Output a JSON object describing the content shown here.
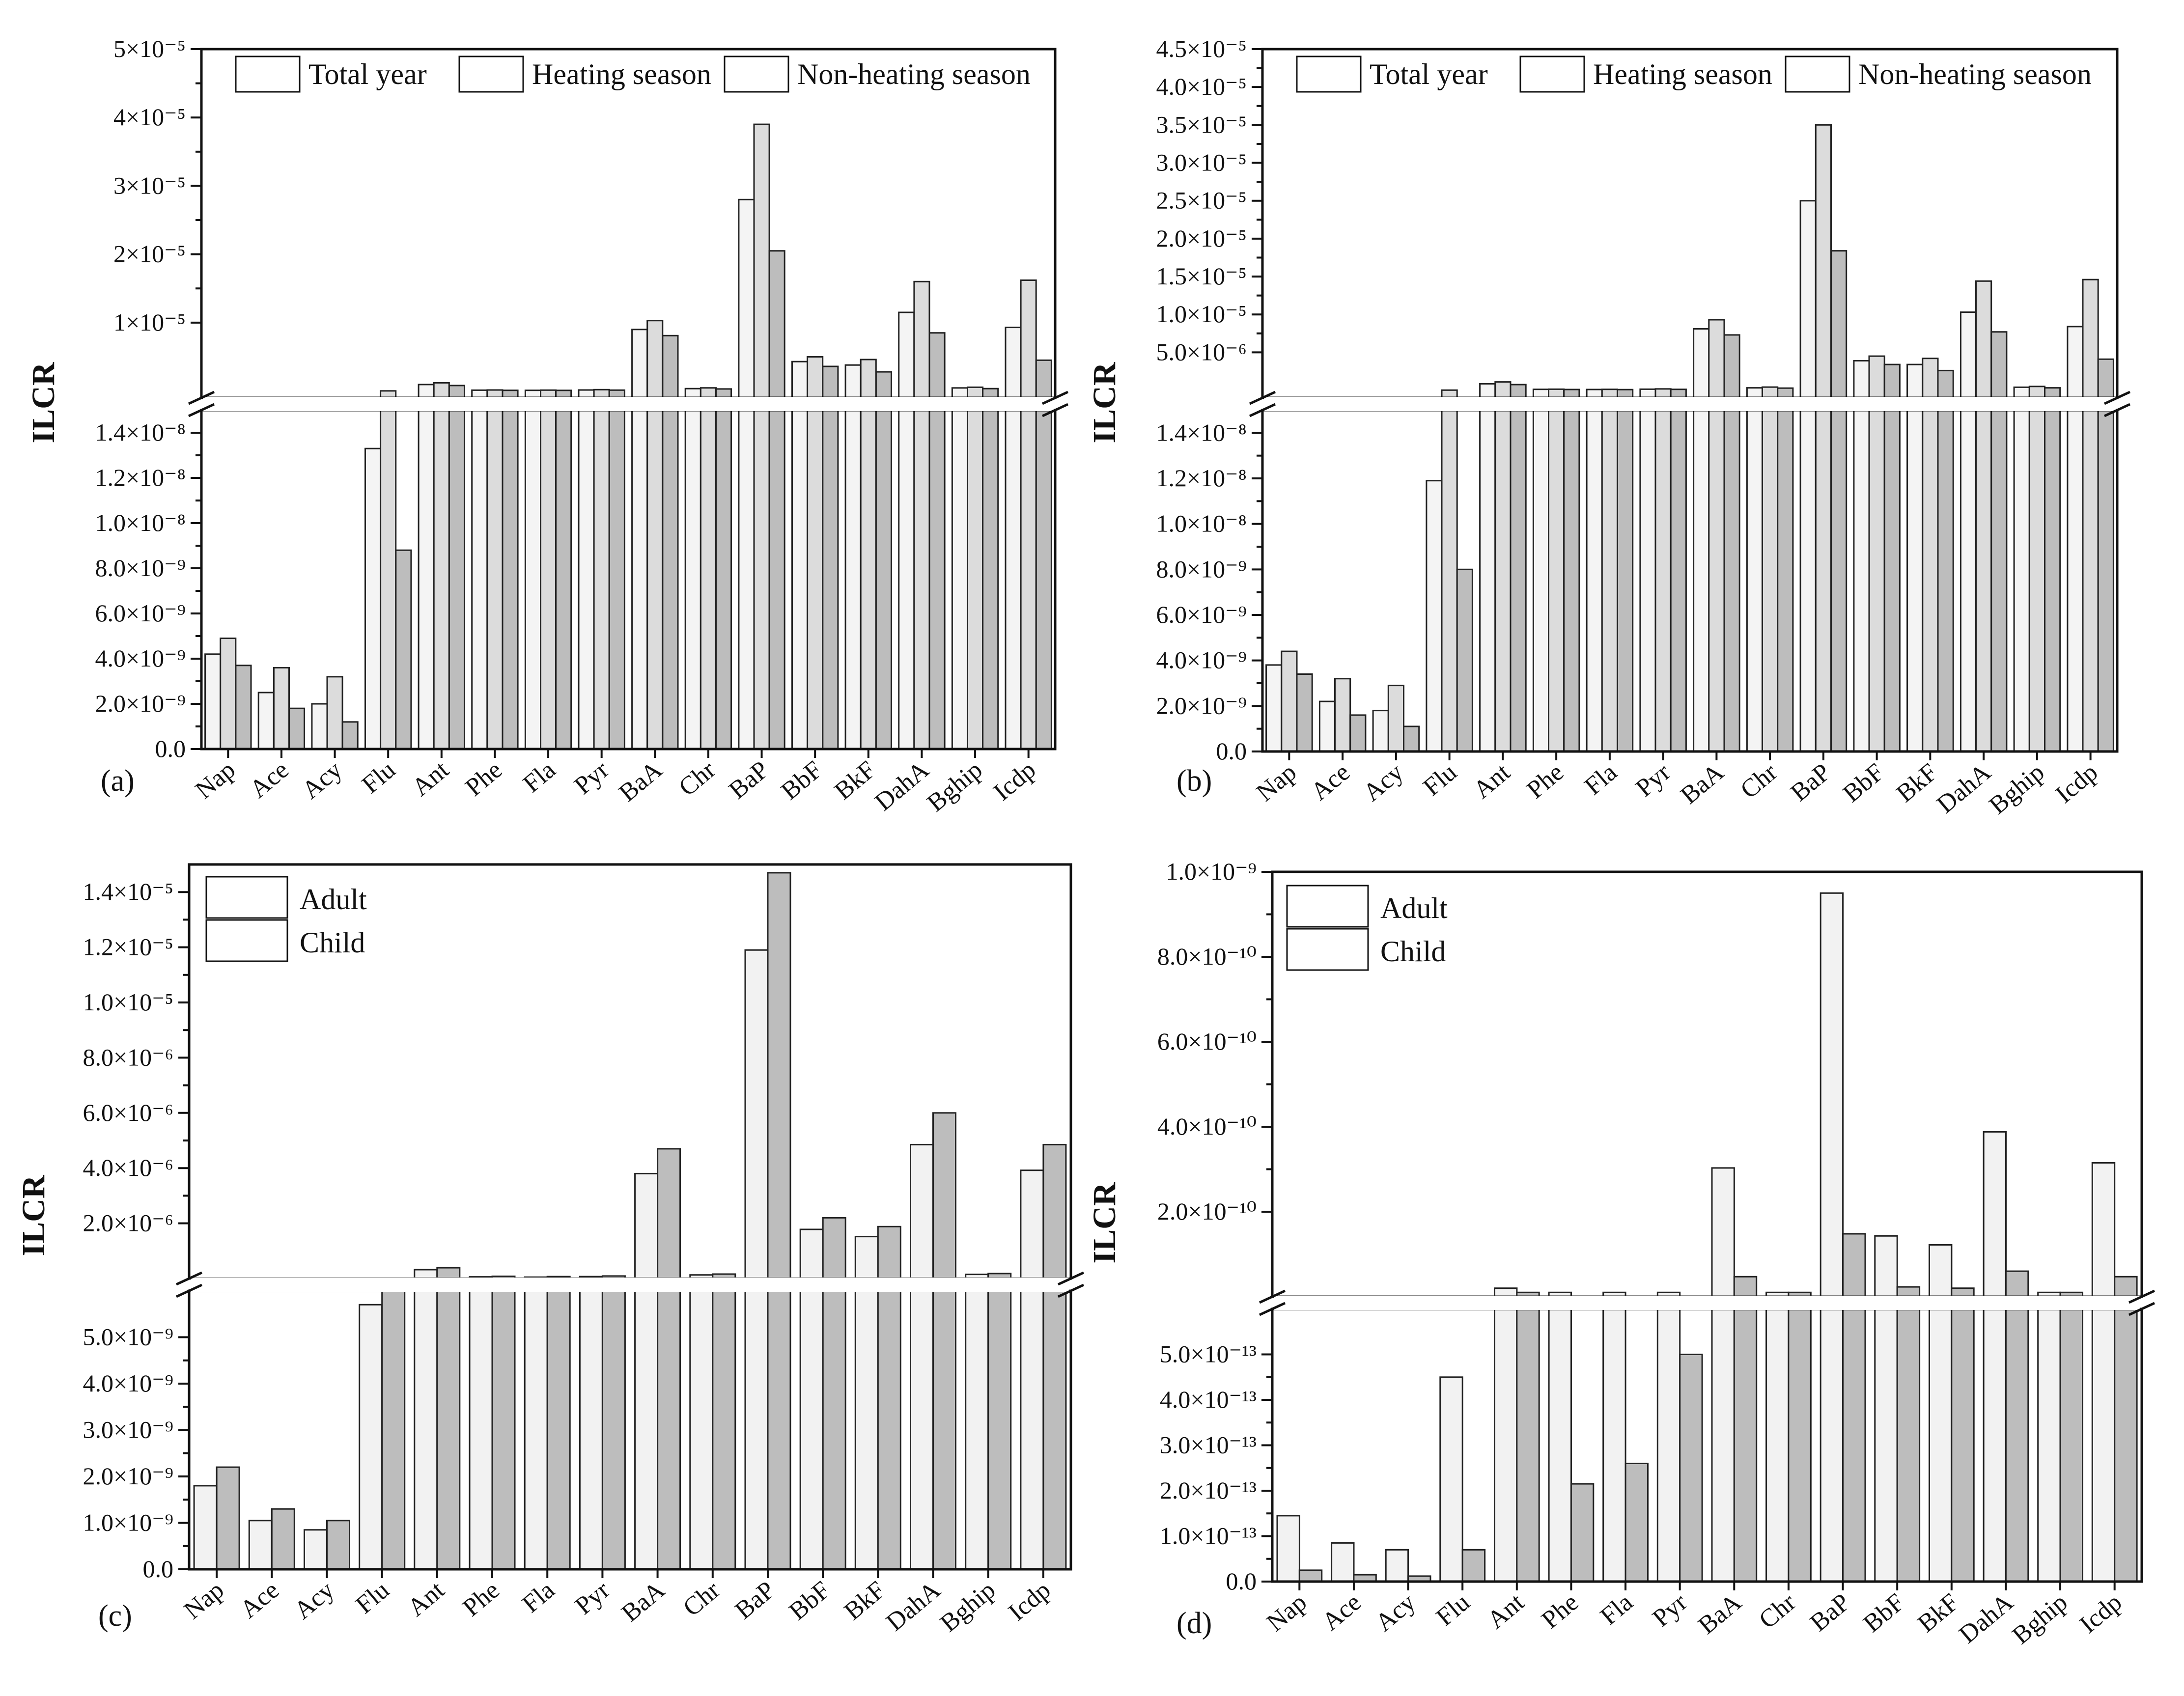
{
  "figure": {
    "colors": {
      "total_year": "#f4f4f4",
      "heating": "#dcdcdc",
      "non_heating": "#bdbdbd",
      "adult": "#f2f2f2",
      "child": "#bdbdbd"
    }
  },
  "chart_data": [
    {
      "id": "a",
      "type": "bar",
      "panel_label": "(a)",
      "ylabel": "ILCR",
      "categories": [
        "Nap",
        "Ace",
        "Acy",
        "Flu",
        "Ant",
        "Phe",
        "Fla",
        "Pyr",
        "BaA",
        "Chr",
        "BaP",
        "BbF",
        "BkF",
        "DahA",
        "Bghip",
        "Icdp"
      ],
      "legend": [
        "Total year",
        "Heating season",
        "Non-heating season"
      ],
      "broken_axis": true,
      "lower_axis": {
        "ylim": [
          0,
          1.5e-08
        ],
        "ticks": [
          0,
          2e-09,
          4e-09,
          6e-09,
          8e-09,
          1e-08,
          1.2e-08,
          1.4e-08
        ],
        "tick_labels": [
          "0.0",
          "2.0×10⁻⁹",
          "4.0×10⁻⁹",
          "6.0×10⁻⁹",
          "8.0×10⁻⁹",
          "1.0×10⁻⁸",
          "1.2×10⁻⁸",
          "1.4×10⁻⁸"
        ]
      },
      "upper_axis": {
        "ylim": [
          -1e-06,
          5e-05
        ],
        "ticks": [
          1e-05,
          2e-05,
          3e-05,
          4e-05,
          5e-05
        ],
        "tick_labels": [
          "1×10⁻⁵",
          "2×10⁻⁵",
          "3×10⁻⁵",
          "4×10⁻⁵",
          "5×10⁻⁵"
        ]
      },
      "series": [
        {
          "name": "Total year",
          "values": [
            4.2e-09,
            2.5e-09,
            2e-09,
            1.33e-08,
            9.5e-07,
            1.2e-07,
            1e-07,
            1.5e-07,
            9e-06,
            3.5e-07,
            2.8e-05,
            4.3e-06,
            3.8e-06,
            1.15e-05,
            4.5e-07,
            9.3e-06
          ]
        },
        {
          "name": "Heating season",
          "values": [
            4.9e-09,
            3.6e-09,
            3.2e-09,
            1.9e-08,
            1.2e-06,
            1.5e-07,
            1.3e-07,
            2e-07,
            1.03e-05,
            4.6e-07,
            3.9e-05,
            5e-06,
            4.6e-06,
            1.6e-05,
            5.5e-07,
            1.62e-05
          ]
        },
        {
          "name": "Non-heating season",
          "values": [
            3.7e-09,
            1.8e-09,
            1.2e-09,
            8.8e-09,
            8e-07,
            1e-07,
            9e-08,
            1.3e-07,
            8.1e-06,
            3e-07,
            2.05e-05,
            3.6e-06,
            2.8e-06,
            8.5e-06,
            3.5e-07,
            4.5e-06
          ]
        }
      ]
    },
    {
      "id": "b",
      "type": "bar",
      "panel_label": "(b)",
      "ylabel": "ILCR",
      "categories": [
        "Nap",
        "Ace",
        "Acy",
        "Flu",
        "Ant",
        "Phe",
        "Fla",
        "Pyr",
        "BaA",
        "Chr",
        "BaP",
        "BbF",
        "BkF",
        "DahA",
        "Bghip",
        "Icdp"
      ],
      "legend": [
        "Total year",
        "Heating season",
        "Non-heating season"
      ],
      "broken_axis": true,
      "lower_axis": {
        "ylim": [
          0,
          1.5e-08
        ],
        "ticks": [
          0,
          2e-09,
          4e-09,
          6e-09,
          8e-09,
          1e-08,
          1.2e-08,
          1.4e-08
        ],
        "tick_labels": [
          "0.0",
          "2.0×10⁻⁹",
          "4.0×10⁻⁹",
          "6.0×10⁻⁹",
          "8.0×10⁻⁹",
          "1.0×10⁻⁸",
          "1.2×10⁻⁸",
          "1.4×10⁻⁸"
        ]
      },
      "upper_axis": {
        "ylim": [
          -1e-06,
          4.5e-05
        ],
        "ticks": [
          5e-06,
          1e-05,
          1.5e-05,
          2e-05,
          2.5e-05,
          3e-05,
          3.5e-05,
          4e-05,
          4.5e-05
        ],
        "tick_labels": [
          "5.0×10⁻⁶",
          "1.0×10⁻⁵",
          "1.5×10⁻⁵",
          "2.0×10⁻⁵",
          "2.5×10⁻⁵",
          "3.0×10⁻⁵",
          "3.5×10⁻⁵",
          "4.0×10⁻⁵",
          "4.5×10⁻⁵"
        ]
      },
      "series": [
        {
          "name": "Total year",
          "values": [
            3.8e-09,
            2.2e-09,
            1.8e-09,
            1.19e-08,
            8.5e-07,
            1.2e-07,
            1e-07,
            1.4e-07,
            8.1e-06,
            3.2e-07,
            2.5e-05,
            3.9e-06,
            3.4e-06,
            1.03e-05,
            4e-07,
            8.4e-06
          ]
        },
        {
          "name": "Heating season",
          "values": [
            4.4e-09,
            3.2e-09,
            2.9e-09,
            1.7e-08,
            1.1e-06,
            1.4e-07,
            1.2e-07,
            1.8e-07,
            9.3e-06,
            4.2e-07,
            3.5e-05,
            4.5e-06,
            4.2e-06,
            1.44e-05,
            5e-07,
            1.46e-05
          ]
        },
        {
          "name": "Non-heating season",
          "values": [
            3.4e-09,
            1.6e-09,
            1.1e-09,
            8e-09,
            7.5e-07,
            1e-07,
            9e-08,
            1.2e-07,
            7.3e-06,
            2.8e-07,
            1.84e-05,
            3.4e-06,
            2.6e-06,
            7.7e-06,
            3.2e-07,
            4.1e-06
          ]
        }
      ]
    },
    {
      "id": "c",
      "type": "bar",
      "panel_label": "(c)",
      "ylabel": "ILCR",
      "categories": [
        "Nap",
        "Ace",
        "Acy",
        "Flu",
        "Ant",
        "Phe",
        "Fla",
        "Pyr",
        "BaA",
        "Chr",
        "BaP",
        "BbF",
        "BkF",
        "DahA",
        "Bghip",
        "Icdp"
      ],
      "legend": [
        "Adult",
        "Child"
      ],
      "broken_axis": true,
      "lower_axis": {
        "ylim": [
          0,
          6e-09
        ],
        "ticks": [
          0,
          1e-09,
          2e-09,
          3e-09,
          4e-09,
          5e-09
        ],
        "tick_labels": [
          "0.0",
          "1.0×10⁻⁹",
          "2.0×10⁻⁹",
          "3.0×10⁻⁹",
          "4.0×10⁻⁹",
          "5.0×10⁻⁹"
        ]
      },
      "upper_axis": {
        "ylim": [
          0,
          1.5e-05
        ],
        "ticks": [
          2e-06,
          4e-06,
          6e-06,
          8e-06,
          1e-05,
          1.2e-05,
          1.4e-05
        ],
        "tick_labels": [
          "2.0×10⁻⁶",
          "4.0×10⁻⁶",
          "6.0×10⁻⁶",
          "8.0×10⁻⁶",
          "1.0×10⁻⁵",
          "1.2×10⁻⁵",
          "1.4×10⁻⁵"
        ]
      },
      "series": [
        {
          "name": "Adult",
          "values": [
            1.8e-09,
            1.05e-09,
            8.5e-10,
            5.7e-09,
            3.2e-07,
            6e-08,
            5e-08,
            7e-08,
            3.8e-06,
            1.3e-07,
            1.19e-05,
            1.78e-06,
            1.52e-06,
            4.85e-06,
            1.5e-07,
            3.92e-06
          ]
        },
        {
          "name": "Child",
          "values": [
            2.2e-09,
            1.3e-09,
            1.05e-09,
            7e-09,
            3.9e-07,
            8e-08,
            7e-08,
            9e-08,
            4.7e-06,
            1.6e-07,
            1.47e-05,
            2.2e-06,
            1.88e-06,
            6e-06,
            1.8e-07,
            4.85e-06
          ]
        }
      ]
    },
    {
      "id": "d",
      "type": "bar",
      "panel_label": "(d)",
      "ylabel": "ILCR",
      "categories": [
        "Nap",
        "Ace",
        "Acy",
        "Flu",
        "Ant",
        "Phe",
        "Fla",
        "Pyr",
        "BaA",
        "Chr",
        "BaP",
        "BbF",
        "BkF",
        "DahA",
        "Bghip",
        "Icdp"
      ],
      "legend": [
        "Adult",
        "Child"
      ],
      "broken_axis": true,
      "lower_axis": {
        "ylim": [
          0,
          6e-13
        ],
        "ticks": [
          0,
          1e-13,
          2e-13,
          3e-13,
          4e-13,
          5e-13
        ],
        "tick_labels": [
          "0.0",
          "1.0×10⁻¹³",
          "2.0×10⁻¹³",
          "3.0×10⁻¹³",
          "4.0×10⁻¹³",
          "5.0×10⁻¹³"
        ]
      },
      "upper_axis": {
        "ylim": [
          0,
          1e-09
        ],
        "ticks": [
          2e-10,
          4e-10,
          6e-10,
          8e-10,
          1e-09
        ],
        "tick_labels": [
          "2.0×10⁻¹⁰",
          "4.0×10⁻¹⁰",
          "6.0×10⁻¹⁰",
          "8.0×10⁻¹⁰",
          "1.0×10⁻⁹"
        ]
      },
      "series": [
        {
          "name": "Adult",
          "values": [
            1.45e-13,
            8.5e-14,
            7e-14,
            4.5e-13,
            2e-11,
            1e-11,
            1e-11,
            1e-11,
            3.03e-10,
            1e-11,
            9.5e-10,
            1.43e-10,
            1.22e-10,
            3.88e-10,
            1e-11,
            3.15e-10
          ]
        },
        {
          "name": "Child",
          "values": [
            2.5e-14,
            1.5e-14,
            1.2e-14,
            7e-14,
            1e-11,
            2.15e-13,
            2.6e-13,
            5e-13,
            4.7e-11,
            1e-11,
            1.48e-10,
            2.3e-11,
            2e-11,
            6e-11,
            1e-11,
            4.7e-11
          ]
        }
      ]
    }
  ]
}
